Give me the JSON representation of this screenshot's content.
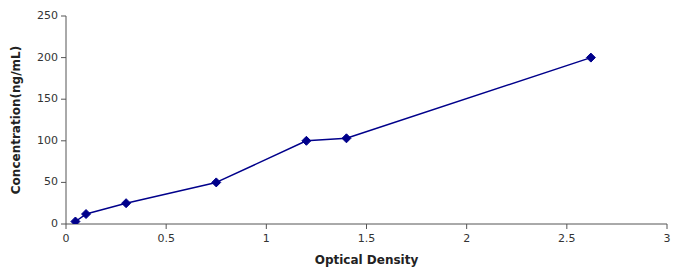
{
  "chart_data": {
    "type": "line",
    "x": [
      0.047,
      0.1,
      0.3,
      0.75,
      1.2,
      1.4,
      2.62
    ],
    "values": [
      3,
      12,
      25,
      50,
      100,
      103,
      200
    ],
    "color": "#00008B",
    "marker": "diamond",
    "line_style": "solid",
    "xlabel": "Optical Density",
    "ylabel": "Concentration(ng/mL)",
    "xlim": [
      0,
      3
    ],
    "ylim": [
      0,
      250
    ],
    "xticks": [
      0,
      0.5,
      1,
      1.5,
      2,
      2.5,
      3
    ],
    "yticks": [
      0,
      50,
      100,
      150,
      200,
      250
    ]
  }
}
